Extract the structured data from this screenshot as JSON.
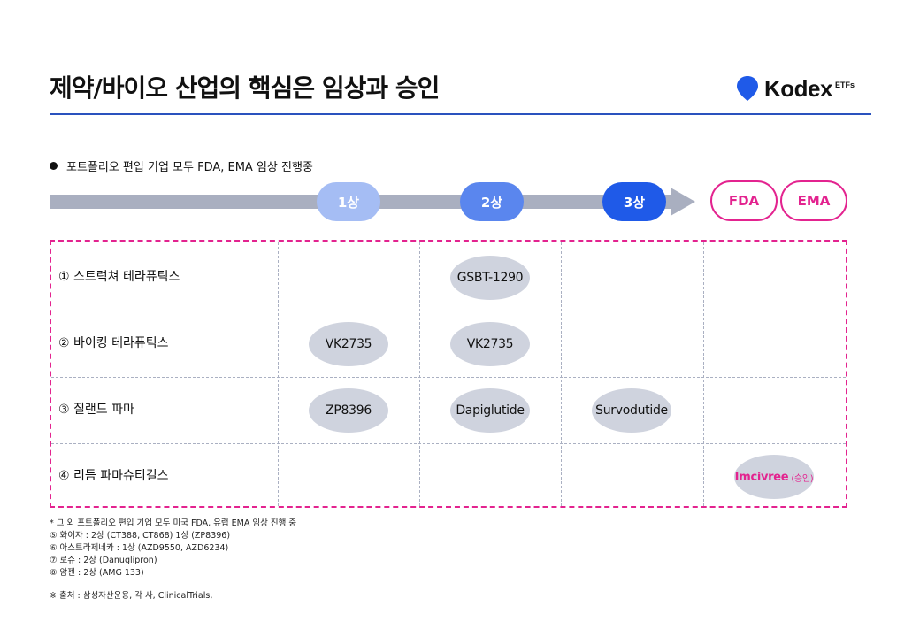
{
  "header": {
    "title": "제약/바이오 산업의 핵심은 임상과 승인",
    "logo_text": "Kodex",
    "logo_sub": "ETFs",
    "logo_icon": "location-pin-icon",
    "accent_color": "#2a52be"
  },
  "bullet": "포트폴리오 편입 기업 모두 FDA, EMA 임상 진행중",
  "pipeline": {
    "phases": [
      "1상",
      "2상",
      "3상"
    ],
    "approvals": [
      "FDA",
      "EMA"
    ],
    "phase_colors": [
      "#a5bdf4",
      "#5a86ee",
      "#1f5ae8"
    ],
    "approval_color": "#e3238f"
  },
  "rows": [
    {
      "label": "① 스트럭쳐 테라퓨틱스",
      "cells": [
        "",
        "GSBT-1290",
        "",
        ""
      ]
    },
    {
      "label": "② 바이킹 테라퓨틱스",
      "cells": [
        "VK2735",
        "VK2735",
        "",
        ""
      ]
    },
    {
      "label": "③ 질랜드 파마",
      "cells": [
        "ZP8396",
        "Dapiglutide",
        "Survodutide",
        ""
      ]
    },
    {
      "label": "④ 리듬 파마슈티컬스",
      "cells": [
        "",
        "",
        "",
        "Imcivree"
      ],
      "approved_note": "(승인)"
    }
  ],
  "notes": [
    "* 그 외 포트폴리오 편입 기업 모두 미국 FDA, 유럽 EMA 임상 진행 중",
    "⑤ 화이자 : 2상 (CT388, CT868) 1상 (ZP8396)",
    "⑥ 아스트라제네카 : 1상 (AZD9550, AZD6234)",
    "⑦ 로슈 : 2상 (Danuglipron)",
    "⑧ 암젠 : 2상 (AMG 133)"
  ],
  "source": "※ 출처 : 삼성자산운용, 각 사, ClinicalTrials,"
}
